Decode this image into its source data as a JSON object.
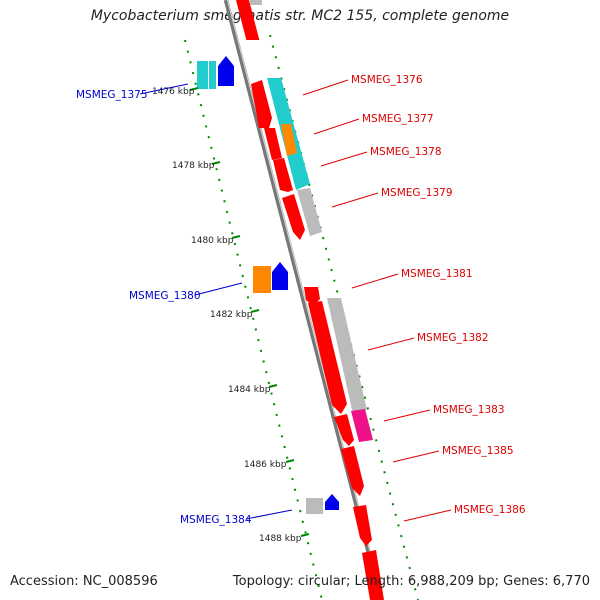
{
  "title": "Mycobacterium smegmatis str. MC2 155, complete genome",
  "footer": {
    "accession": "Accession: NC_008596",
    "summary": "Topology: circular; Length: 6,988,209 bp; Genes: 6,770"
  },
  "colors": {
    "red": "#ff0000",
    "cyan": "#22cccc",
    "orange": "#ff8800",
    "gray": "#bbbbbb",
    "blue": "#0000ee",
    "magenta": "#ee1188",
    "ruler_tick": "#008800",
    "label_red": "#dd0000",
    "label_blue": "#0000cc"
  },
  "ruler": [
    {
      "label": "1476 kbp"
    },
    {
      "label": "1478 kbp"
    },
    {
      "label": "1480 kbp"
    },
    {
      "label": "1482 kbp"
    },
    {
      "label": "1484 kbp"
    },
    {
      "label": "1486 kbp"
    },
    {
      "label": "1488 kbp"
    }
  ],
  "gene_labels": [
    {
      "label": "MSMEG_1375",
      "side": "left"
    },
    {
      "label": "MSMEG_1376",
      "side": "right"
    },
    {
      "label": "MSMEG_1377",
      "side": "right"
    },
    {
      "label": "MSMEG_1378",
      "side": "right"
    },
    {
      "label": "MSMEG_1379",
      "side": "right"
    },
    {
      "label": "MSMEG_1380",
      "side": "left"
    },
    {
      "label": "MSMEG_1381",
      "side": "right"
    },
    {
      "label": "MSMEG_1382",
      "side": "right"
    },
    {
      "label": "MSMEG_1383",
      "side": "right"
    },
    {
      "label": "MSMEG_1385",
      "side": "right"
    },
    {
      "label": "MSMEG_1384",
      "side": "left"
    },
    {
      "label": "MSMEG_1386",
      "side": "right"
    }
  ]
}
